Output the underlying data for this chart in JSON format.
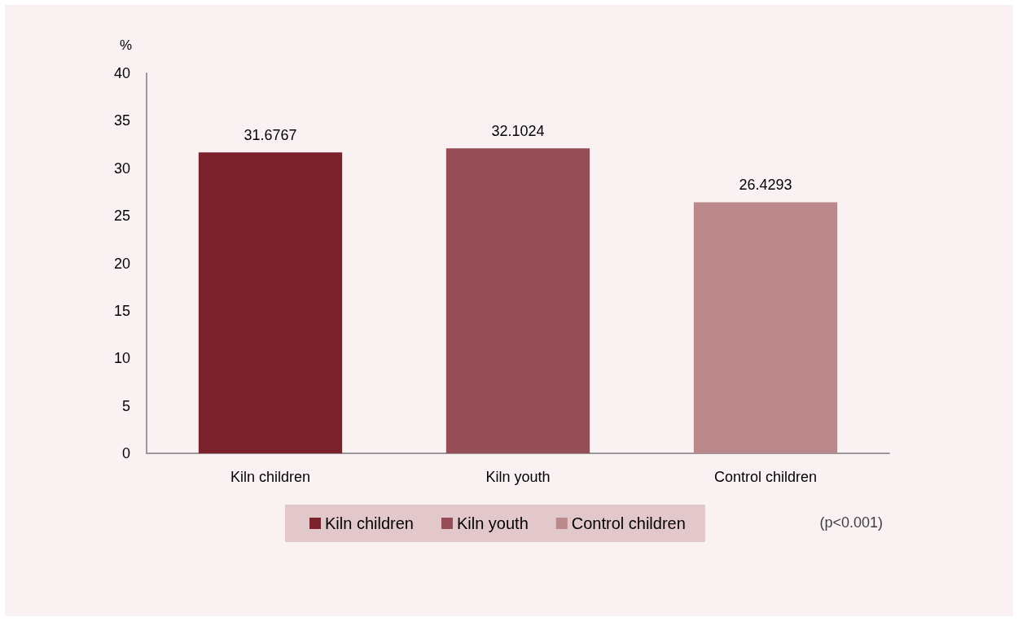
{
  "chart_data": {
    "type": "bar",
    "ylabel": "%",
    "categories": [
      "Kiln children",
      "Kiln youth",
      "Control children"
    ],
    "series": [
      {
        "name": "Kiln children",
        "color": "#7b222d",
        "values": [
          31.6767,
          null,
          null
        ]
      },
      {
        "name": "Kiln youth",
        "color": "#954e56",
        "values": [
          null,
          32.1024,
          null
        ]
      },
      {
        "name": "Control children",
        "color": "#bb898c",
        "values": [
          null,
          null,
          26.4293
        ]
      }
    ],
    "ylim": [
      0,
      40
    ],
    "yticks": [
      0,
      5,
      10,
      15,
      20,
      25,
      30,
      35,
      40
    ],
    "grid": false,
    "legend": "bottom",
    "data_labels": true,
    "annotations": [
      "(p<0.001)"
    ]
  }
}
